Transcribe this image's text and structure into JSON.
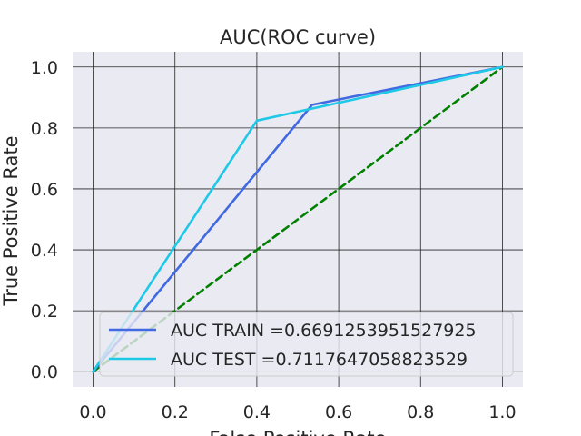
{
  "chart_data": {
    "type": "line",
    "title": "AUC(ROC curve)",
    "xlabel": "False Positive Rate",
    "ylabel": "True Positive Rate",
    "xlim": [
      -0.05,
      1.05
    ],
    "ylim": [
      -0.05,
      1.05
    ],
    "xticks": [
      "0.0",
      "0.2",
      "0.4",
      "0.6",
      "0.8",
      "1.0"
    ],
    "yticks": [
      "0.0",
      "0.2",
      "0.4",
      "0.6",
      "0.8",
      "1.0"
    ],
    "grid": true,
    "legend": "lower-right",
    "series": [
      {
        "name": "AUC TRAIN =0.6691253951527925",
        "color": "#4169e1",
        "x": [
          0.0,
          0.535,
          1.0
        ],
        "y": [
          0.0,
          0.876,
          1.0
        ]
      },
      {
        "name": "AUC TEST =0.7117647058823529",
        "color": "#1ec8e6",
        "x": [
          0.0,
          0.4,
          1.0
        ],
        "y": [
          0.0,
          0.824,
          1.0
        ]
      },
      {
        "name": "",
        "color": "#008000",
        "dashed": true,
        "x": [
          0.0,
          1.0
        ],
        "y": [
          0.0,
          1.0
        ]
      }
    ]
  }
}
